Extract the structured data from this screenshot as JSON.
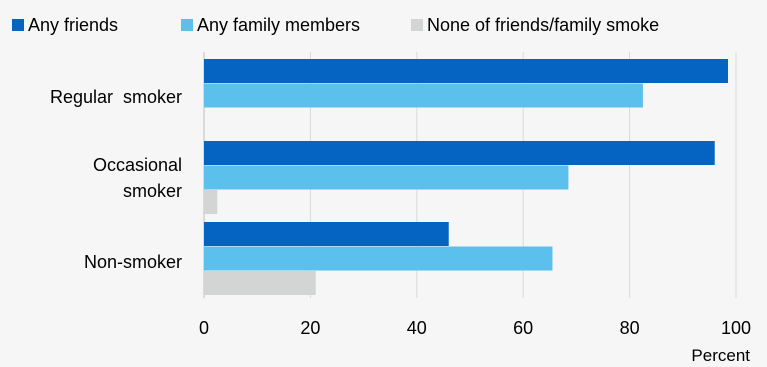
{
  "chart_data": {
    "type": "bar",
    "orientation": "horizontal",
    "categories": [
      "Regular  smoker",
      "Occasional smoker",
      "Non-smoker"
    ],
    "category_lines": [
      [
        "Regular  smoker"
      ],
      [
        "Occasional",
        "smoker"
      ],
      [
        "Non-smoker"
      ]
    ],
    "series": [
      {
        "name": "Any friends",
        "color": "#0563c1",
        "values": [
          98.5,
          96,
          46
        ]
      },
      {
        "name": "Any family members",
        "color": "#5bc0ec",
        "values": [
          82.5,
          68.5,
          65.5
        ]
      },
      {
        "name": "None of friends/family smoke",
        "color": "#d3d5d5",
        "values": [
          0,
          2.5,
          21
        ]
      }
    ],
    "xlim": [
      0,
      100
    ],
    "xticks": [
      0,
      20,
      40,
      60,
      80,
      100
    ],
    "xlabel": "Percent",
    "ylabel": "",
    "title": "",
    "grid": "vertical",
    "legend_position": "top"
  }
}
